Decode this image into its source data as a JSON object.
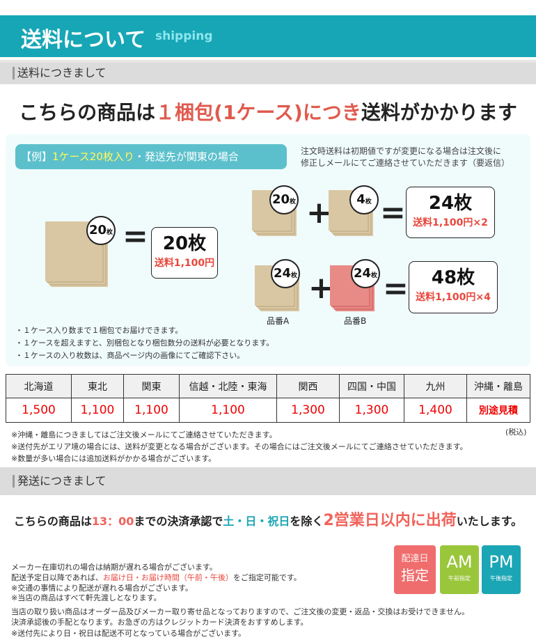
{
  "header": {
    "title": "送料について",
    "subtitle": "shipping"
  },
  "section1": {
    "title": "送料につきまして"
  },
  "headline": {
    "part1": "こちらの商品は",
    "part2": "１梱包(1ケース)につき",
    "part3": "送料がかかります"
  },
  "example": {
    "pill_prefix": "【例】",
    "pill_highlight": "1ケース20枚入り",
    "pill_suffix": "・発送先が関東の場合",
    "note_lines": [
      "注文時送料は初期値ですが変更になる場合は注文後に",
      "修正しメールにてご連絡させていただきます（要返信）"
    ],
    "case1": {
      "badge": "20",
      "unit": "枚",
      "result": "20枚",
      "price": "送料1,100円"
    },
    "case2": {
      "badge_a": "20",
      "badge_b": "4",
      "unit": "枚",
      "result": "24枚",
      "price": "送料1,100円×2"
    },
    "case3": {
      "badge_a": "24",
      "badge_b": "24",
      "unit": "枚",
      "label_a": "品番A",
      "label_b": "品番B",
      "result": "48枚",
      "price": "送料1,100円×4"
    },
    "operators": {
      "plus": "+",
      "equals": "="
    },
    "bullets": [
      "・１ケース入り数まで１梱包でお届けできます。",
      "・１ケースを超えますと、別梱包となり梱包数分の送料が必要となります。",
      "・１ケースの入り枚数は、商品ページ内の画像にてご確認下さい。"
    ]
  },
  "rates": {
    "regions": [
      "北海道",
      "東北",
      "関東",
      "信越・北陸・東海",
      "関西",
      "四国・中国",
      "九州",
      "沖縄・離島"
    ],
    "prices": [
      "1,500",
      "1,100",
      "1,100",
      "1,100",
      "1,300",
      "1,300",
      "1,400",
      "別途見積"
    ],
    "tax_note": "(税込)",
    "notes": [
      "※沖縄・離島につきましてはご注文後メールにてご連絡させていただきます。",
      "※送付先がエリア境の場合には、送料が変更となる場合がございます。その場合にはご注文後メールにてご連絡させていただきます。",
      "※数量が多い場合には追加送料がかかる場合がございます。"
    ]
  },
  "section2": {
    "title": "発送につきまして"
  },
  "shipping": {
    "p1": "こちらの商品は",
    "time": "13：00",
    "p2": "までの決済承認で",
    "days": "土・日・祝日",
    "p3": "を除く",
    "big": "2営業日以内に出荷",
    "p4": "いたします。"
  },
  "delivery": {
    "line1": "メーカー在庫切れの場合は納期が遅れる場合がございます。",
    "line2a": "配送予定日以降であれば、",
    "line2b": "お届け日・お届け時間（午前・午後）",
    "line2c": "をご指定可能です。",
    "line3": "※交通の事情により配送が遅れる場合がございます。",
    "line4": "※当店の商品はすべて軒先渡しとなります。",
    "line5": "当店の取り扱い商品はオーダー品及びメーカー取り寄せ品となっておりますので、ご注文後の変更・返品・交換はお受けできません。",
    "line6": "決済承認後の手配となります。お急ぎの方はクレジットカード決済をおすすめします。",
    "line7": "※送付先により日・祝日は配送不可となっている場合がございます。"
  },
  "icons": {
    "date": {
      "top": "配達日",
      "bottom": "指定",
      "color": "#ef6d6d"
    },
    "am": {
      "big": "AM",
      "small": "午前指定",
      "color": "#9ac63c"
    },
    "pm": {
      "big": "PM",
      "small": "午後指定",
      "color": "#1ba6b5"
    }
  },
  "colors": {
    "brand": "#17a6b5",
    "accent_red": "#e05a4e"
  }
}
